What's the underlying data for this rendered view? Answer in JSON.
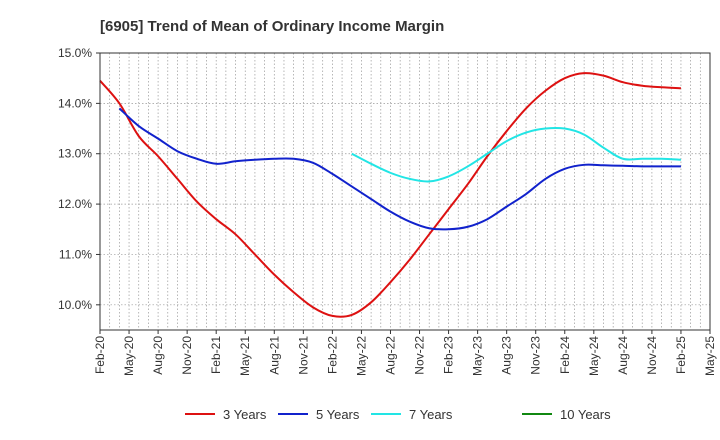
{
  "chart_data": {
    "type": "line",
    "title": "[6905]  Trend of Mean of Ordinary Income Margin",
    "xlabel": "",
    "ylabel": "",
    "ylim": [
      9.5,
      15.0
    ],
    "yticks": [
      10.0,
      11.0,
      12.0,
      13.0,
      14.0,
      15.0
    ],
    "ytick_labels": [
      "10.0%",
      "11.0%",
      "12.0%",
      "13.0%",
      "14.0%",
      "15.0%"
    ],
    "x_range": [
      0,
      63
    ],
    "xticks": [
      0,
      3,
      6,
      9,
      12,
      15,
      18,
      21,
      24,
      27,
      30,
      33,
      36,
      39,
      42,
      45,
      48,
      51,
      54,
      57,
      60,
      63
    ],
    "xtick_labels": [
      "Feb-20",
      "May-20",
      "Aug-20",
      "Nov-20",
      "Feb-21",
      "May-21",
      "Aug-21",
      "Nov-21",
      "Feb-22",
      "May-22",
      "Aug-22",
      "Nov-22",
      "Feb-23",
      "May-23",
      "Aug-23",
      "Nov-23",
      "Feb-24",
      "May-24",
      "Aug-24",
      "Nov-24",
      "Feb-25",
      "May-25"
    ],
    "grid": true,
    "legend_position": "bottom",
    "series": [
      {
        "name": "3 Years",
        "color": "#dd1111",
        "x": [
          0,
          2,
          4,
          6,
          8,
          10,
          12,
          14,
          16,
          18,
          20,
          22,
          24,
          26,
          28,
          30,
          32,
          34,
          36,
          38,
          40,
          42,
          44,
          46,
          48,
          50,
          52,
          54,
          56,
          58,
          60
        ],
        "values": [
          14.45,
          14.0,
          13.35,
          12.95,
          12.5,
          12.05,
          11.7,
          11.4,
          11.0,
          10.6,
          10.25,
          9.95,
          9.78,
          9.8,
          10.05,
          10.45,
          10.9,
          11.4,
          11.9,
          12.4,
          12.95,
          13.45,
          13.9,
          14.25,
          14.5,
          14.6,
          14.55,
          14.42,
          14.35,
          14.32,
          14.3
        ]
      },
      {
        "name": "5 Years",
        "color": "#1122cc",
        "x": [
          2,
          4,
          6,
          8,
          10,
          12,
          14,
          16,
          18,
          20,
          22,
          24,
          26,
          28,
          30,
          32,
          34,
          36,
          38,
          40,
          42,
          44,
          46,
          48,
          50,
          52,
          54,
          56,
          58,
          60
        ],
        "values": [
          13.9,
          13.55,
          13.3,
          13.05,
          12.9,
          12.8,
          12.85,
          12.88,
          12.9,
          12.9,
          12.82,
          12.6,
          12.35,
          12.1,
          11.85,
          11.65,
          11.52,
          11.5,
          11.55,
          11.7,
          11.95,
          12.2,
          12.5,
          12.7,
          12.78,
          12.77,
          12.76,
          12.75,
          12.75,
          12.75
        ]
      },
      {
        "name": "7 Years",
        "color": "#22e5e5",
        "x": [
          26,
          28,
          30,
          32,
          34,
          36,
          38,
          40,
          42,
          44,
          46,
          48,
          50,
          52,
          54,
          56,
          58,
          60
        ],
        "values": [
          13.0,
          12.8,
          12.62,
          12.5,
          12.45,
          12.55,
          12.75,
          13.0,
          13.25,
          13.42,
          13.5,
          13.5,
          13.38,
          13.12,
          12.9,
          12.9,
          12.9,
          12.88
        ]
      },
      {
        "name": "10 Years",
        "color": "#118811",
        "x": [],
        "values": []
      }
    ]
  }
}
